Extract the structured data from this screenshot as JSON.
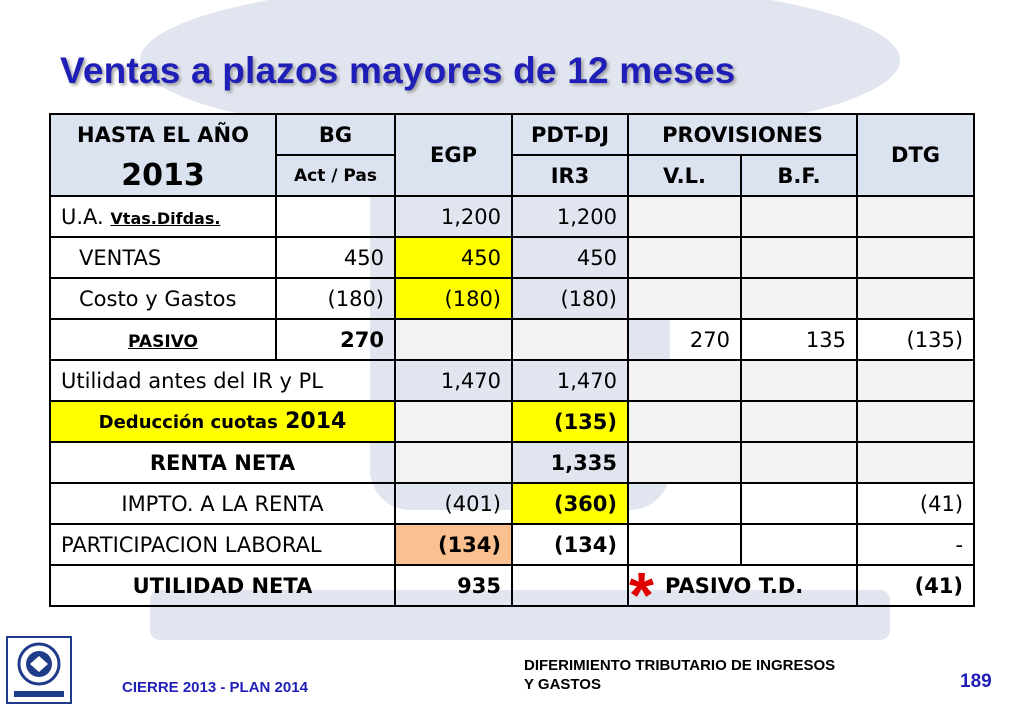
{
  "title": "Ventas a plazos mayores de 12 meses",
  "table": {
    "header": {
      "year_label": "HASTA EL AÑO",
      "year": "2013",
      "bg": "BG",
      "bg_sub": "Act / Pas",
      "egp": "EGP",
      "pdt": "PDT-DJ",
      "ir3": "IR3",
      "provisiones": "PROVISIONES",
      "vl": "V.L.",
      "bf": "B.F.",
      "dtg": "DTG"
    },
    "rows": {
      "ua": {
        "label": "U.A.",
        "sublabel": "Vtas.Difdas.",
        "bg": "",
        "egp": "1,200",
        "pdt": "1,200"
      },
      "ventas": {
        "label": "VENTAS",
        "bg": "450",
        "egp": "450",
        "pdt": "450"
      },
      "costo": {
        "label": "Costo y Gastos",
        "bg": "(180)",
        "egp": "(180)",
        "pdt": "(180)"
      },
      "pasivo": {
        "label": "PASIVO",
        "bg": "270",
        "vl": "270",
        "bf": "135",
        "dtg": "(135)"
      },
      "utilidad_antes": {
        "label": "Utilidad antes del IR y PL",
        "egp": "1,470",
        "pdt": "1,470"
      },
      "deduccion": {
        "label": "Deducción cuotas",
        "label_year": "2014",
        "pdt": "(135)"
      },
      "renta_neta": {
        "label": "RENTA NETA",
        "pdt": "1,335"
      },
      "impto": {
        "label": "IMPTO. A LA RENTA",
        "egp": "(401)",
        "pdt": "(360)",
        "dtg": "(41)"
      },
      "participacion": {
        "label": "PARTICIPACION LABORAL",
        "egp": "(134)",
        "pdt": "(134)",
        "dtg": "-"
      },
      "utilidad_neta": {
        "label": "UTILIDAD NETA",
        "egp": "935",
        "asterisk": "*",
        "pasivo_td": "PASIVO T.D.",
        "dtg": "(41)"
      }
    }
  },
  "footer": {
    "left": "CIERRE 2013 - PLAN 2014",
    "mid_line1": "DIFERIMIENTO TRIBUTARIO DE INGRESOS",
    "mid_line2": "Y GASTOS",
    "page": "189"
  },
  "colors": {
    "title": "#1f1fb8",
    "header_bg": "#dbe3f0",
    "highlight_yellow": "#ffff00",
    "highlight_orange": "#fac090",
    "asterisk": "#e00000"
  }
}
